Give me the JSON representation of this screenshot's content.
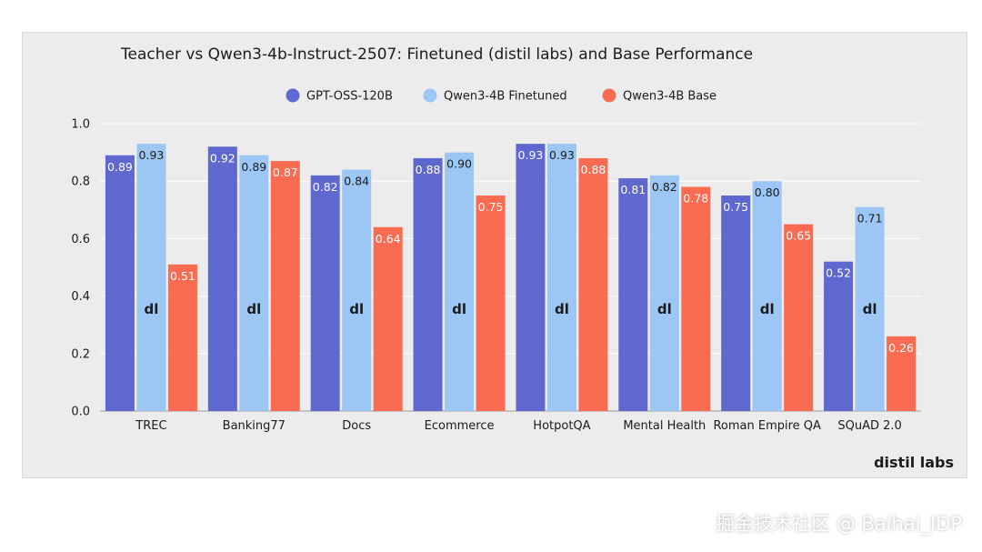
{
  "chart_data": {
    "type": "bar",
    "title": "Teacher vs Qwen3-4b-Instruct-2507: Finetuned (distil labs) and Base Performance",
    "categories": [
      "TREC",
      "Banking77",
      "Docs",
      "Ecommerce",
      "HotpotQA",
      "Mental Health",
      "Roman Empire QA",
      "SQuAD 2.0"
    ],
    "series": [
      {
        "name": "GPT-OSS-120B",
        "color": "#5f68cf",
        "label_color": "#ffffff",
        "values": [
          0.89,
          0.92,
          0.82,
          0.88,
          0.93,
          0.81,
          0.75,
          0.52
        ]
      },
      {
        "name": "Qwen3-4B Finetuned",
        "color": "#9cc7f5",
        "label_color": "#1b1b1b",
        "values": [
          0.93,
          0.89,
          0.84,
          0.9,
          0.93,
          0.82,
          0.8,
          0.71
        ]
      },
      {
        "name": "Qwen3-4B Base",
        "color": "#f96c51",
        "label_color": "#ffffff",
        "values": [
          0.51,
          0.87,
          0.64,
          0.75,
          0.88,
          0.78,
          0.65,
          0.26
        ]
      }
    ],
    "value_labels": [
      [
        "0.89",
        "0.92",
        "0.82",
        "0.88",
        "0.93",
        "0.81",
        "0.75",
        "0.52"
      ],
      [
        "0.93",
        "0.89",
        "0.84",
        "0.90",
        "0.93",
        "0.82",
        "0.80",
        "0.71"
      ],
      [
        "0.51",
        "0.87",
        "0.64",
        "0.75",
        "0.88",
        "0.78",
        "0.65",
        "0.26"
      ]
    ],
    "ylim": [
      0,
      1.0
    ],
    "yticks": [
      0.0,
      0.2,
      0.4,
      0.6,
      0.8,
      1.0
    ],
    "ytick_labels": [
      "0.0",
      "0.2",
      "0.4",
      "0.6",
      "0.8",
      "1.0"
    ],
    "xlabel": "",
    "ylabel": "",
    "grid": true,
    "legend_position": "top-center",
    "finetuned_logo_text": "dl"
  },
  "brand": "distil labs",
  "watermark": "掘金技术社区 @ Baihai_IDP"
}
